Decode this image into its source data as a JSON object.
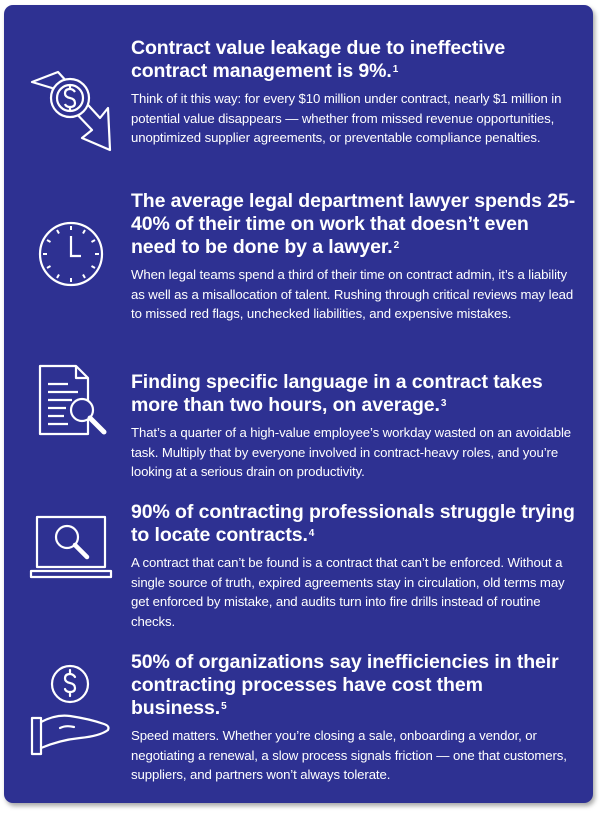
{
  "sections": [
    {
      "icon": "dollar-coin-down-arrow-icon",
      "title": "Contract value leakage due to ineffective contract management is 9%.",
      "footnote": "1",
      "body": "Think of it this way: for every $10 million under contract, nearly $1 million in potential value disappears — whether from missed revenue opportunities, unoptimized supplier agreements, or preventable compliance penalties."
    },
    {
      "icon": "clock-icon",
      "title": "The average legal department lawyer spends 25-40% of their time on work that doesn’t even need to be done by a lawyer.",
      "footnote": "2",
      "body": "When legal teams spend a third of their time on contract admin, it’s a liability as well as a misallocation of talent. Rushing through critical reviews may lead to missed red flags, unchecked liabilities, and expensive mistakes."
    },
    {
      "icon": "document-search-icon",
      "title": "Finding specific language in a contract takes more than two hours, on average.",
      "footnote": "3",
      "body": "That’s a quarter of a high-value employee’s workday wasted on an avoidable task. Multiply that by everyone involved in contract-heavy roles, and you’re looking at a serious drain on productivity."
    },
    {
      "icon": "laptop-search-icon",
      "title": "90% of contracting professionals struggle trying to locate contracts.",
      "footnote": "4",
      "body": "A contract that can’t be found is a contract that can’t be enforced. Without a single source of truth, expired agreements stay in circulation, old terms may get enforced by mistake, and audits turn into fire drills instead of routine checks."
    },
    {
      "icon": "hand-dollar-icon",
      "title": "50% of organizations say inefficiencies in their contracting processes have cost them business.",
      "footnote": "5",
      "body": "Speed matters. Whether you’re closing a sale, onboarding a vendor, or negotiating a renewal, a slow process signals friction — one that customers, suppliers, and partners won’t always tolerate."
    }
  ],
  "colors": {
    "background": "#2e3192",
    "text": "#ffffff"
  }
}
